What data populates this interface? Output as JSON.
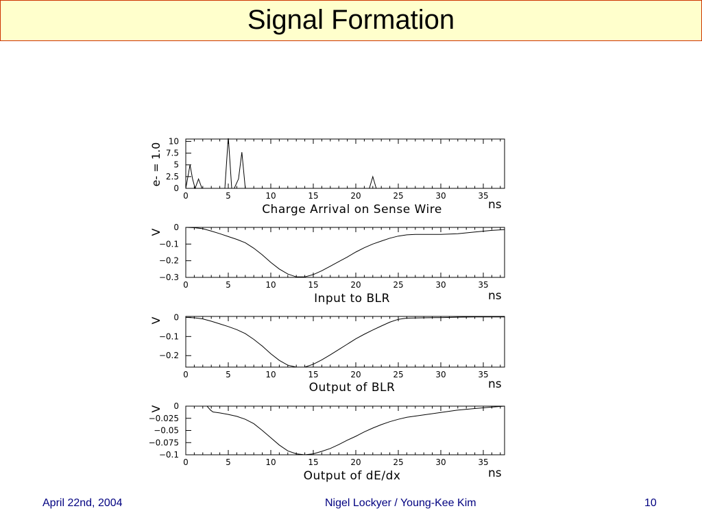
{
  "slide": {
    "title": "Signal Formation",
    "footer_left": "April 22nd, 2004",
    "footer_center": "Nigel Lockyer / Young-Kee Kim",
    "footer_right": "10"
  },
  "chart_data": [
    {
      "type": "line",
      "title": "Charge Arrival on Sense Wire",
      "xlabel": "ns",
      "ylabel": "e- = 1.0",
      "xlim": [
        0,
        37.5
      ],
      "ylim": [
        0,
        10.5
      ],
      "xticks": [
        0,
        5,
        10,
        15,
        20,
        25,
        30,
        35
      ],
      "xtick_labels": [
        "0",
        "5",
        "10",
        "15",
        "20",
        "25",
        "30",
        "35"
      ],
      "yticks": [
        0,
        2.5,
        5,
        7.5,
        10
      ],
      "ytick_labels": [
        "0",
        "2.5",
        "5",
        "7.5",
        "10"
      ],
      "x": [
        0,
        0.2,
        0.5,
        0.8,
        1.1,
        1.5,
        1.9,
        2.2,
        4.6,
        5.0,
        5.4,
        5.7,
        6.2,
        6.6,
        7.0,
        7.4,
        21.6,
        22.0,
        22.4
      ],
      "y": [
        0,
        2.0,
        5.0,
        2.0,
        0,
        2.0,
        0,
        0,
        0,
        11.0,
        0,
        0,
        2.0,
        7.7,
        0,
        0,
        0,
        2.5,
        0
      ]
    },
    {
      "type": "line",
      "title": "Input to BLR",
      "xlabel": "ns",
      "ylabel": "V",
      "xlim": [
        0,
        37.5
      ],
      "ylim": [
        -0.3,
        0
      ],
      "xticks": [
        0,
        5,
        10,
        15,
        20,
        25,
        30,
        35
      ],
      "xtick_labels": [
        "0",
        "5",
        "10",
        "15",
        "20",
        "25",
        "30",
        "35"
      ],
      "yticks": [
        0,
        -0.1,
        -0.2,
        -0.3
      ],
      "ytick_labels": [
        "0",
        "−0.1",
        "−0.2",
        "−0.3"
      ],
      "x": [
        0,
        1,
        2,
        3,
        4,
        5,
        6,
        7,
        8,
        9,
        10,
        11,
        12,
        13,
        14,
        15,
        16,
        17,
        18,
        19,
        20,
        21,
        22,
        23,
        24,
        25,
        26,
        27,
        28,
        30,
        32,
        34,
        36,
        37.5
      ],
      "y": [
        0,
        -0.002,
        -0.008,
        -0.022,
        -0.038,
        -0.055,
        -0.072,
        -0.092,
        -0.125,
        -0.165,
        -0.21,
        -0.25,
        -0.28,
        -0.297,
        -0.297,
        -0.283,
        -0.26,
        -0.233,
        -0.205,
        -0.178,
        -0.148,
        -0.122,
        -0.1,
        -0.082,
        -0.065,
        -0.052,
        -0.045,
        -0.042,
        -0.042,
        -0.042,
        -0.038,
        -0.028,
        -0.018,
        -0.013
      ]
    },
    {
      "type": "line",
      "title": "Output of BLR",
      "xlabel": "ns",
      "ylabel": "V",
      "xlim": [
        0,
        37.5
      ],
      "ylim": [
        -0.26,
        0.005
      ],
      "xticks": [
        0,
        5,
        10,
        15,
        20,
        25,
        30,
        35
      ],
      "xtick_labels": [
        "0",
        "5",
        "10",
        "15",
        "20",
        "25",
        "30",
        "35"
      ],
      "yticks": [
        0,
        -0.1,
        -0.2
      ],
      "ytick_labels": [
        "0",
        "−0.1",
        "−0.2"
      ],
      "x": [
        0,
        1,
        2,
        3,
        4,
        5,
        6,
        7,
        8,
        9,
        10,
        11,
        12,
        13,
        14,
        15,
        16,
        17,
        18,
        19,
        20,
        21,
        22,
        23,
        24,
        25,
        26,
        28,
        30,
        32,
        34,
        36,
        37.5
      ],
      "y": [
        0,
        -0.002,
        -0.008,
        -0.02,
        -0.034,
        -0.048,
        -0.064,
        -0.085,
        -0.115,
        -0.15,
        -0.19,
        -0.225,
        -0.25,
        -0.26,
        -0.26,
        -0.245,
        -0.222,
        -0.196,
        -0.168,
        -0.14,
        -0.112,
        -0.088,
        -0.066,
        -0.045,
        -0.025,
        -0.01,
        -0.004,
        -0.002,
        -0.001,
        0.001,
        0.002,
        0.002,
        0.002
      ]
    },
    {
      "type": "line",
      "title": "Output of dE/dx",
      "xlabel": "ns",
      "ylabel": "V",
      "xlim": [
        0,
        37.5
      ],
      "ylim": [
        -0.1,
        0
      ],
      "xticks": [
        0,
        5,
        10,
        15,
        20,
        25,
        30,
        35
      ],
      "xtick_labels": [
        "0",
        "5",
        "10",
        "15",
        "20",
        "25",
        "30",
        "35"
      ],
      "yticks": [
        0,
        -0.025,
        -0.05,
        -0.075,
        -0.1
      ],
      "ytick_labels": [
        "0",
        "−0.025",
        "−0.05",
        "−0.075",
        "−0.1"
      ],
      "x": [
        0,
        2.5,
        2.9,
        3.2,
        4,
        5,
        6,
        7,
        8,
        9,
        10,
        11,
        12,
        13,
        14,
        15,
        16,
        17,
        18,
        19,
        20,
        21,
        22,
        23,
        24,
        25,
        26,
        28,
        30,
        32,
        34,
        36,
        37.5
      ],
      "y": [
        0,
        0,
        -0.008,
        -0.012,
        -0.014,
        -0.017,
        -0.021,
        -0.027,
        -0.036,
        -0.05,
        -0.065,
        -0.08,
        -0.092,
        -0.098,
        -0.1,
        -0.098,
        -0.093,
        -0.087,
        -0.079,
        -0.07,
        -0.062,
        -0.053,
        -0.045,
        -0.038,
        -0.032,
        -0.027,
        -0.023,
        -0.018,
        -0.013,
        -0.008,
        -0.005,
        -0.002,
        0
      ]
    }
  ]
}
